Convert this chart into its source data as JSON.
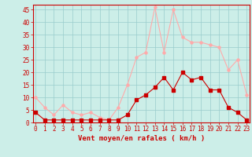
{
  "hours": [
    0,
    1,
    2,
    3,
    4,
    5,
    6,
    7,
    8,
    9,
    10,
    11,
    12,
    13,
    14,
    15,
    16,
    17,
    18,
    19,
    20,
    21,
    22,
    23
  ],
  "vent_moyen": [
    4,
    1,
    1,
    1,
    1,
    1,
    1,
    1,
    1,
    1,
    3,
    9,
    11,
    14,
    18,
    13,
    20,
    17,
    18,
    13,
    13,
    6,
    4,
    1
  ],
  "en_rafales": [
    10,
    6,
    3,
    7,
    4,
    3,
    4,
    2,
    1,
    6,
    15,
    26,
    28,
    46,
    28,
    45,
    34,
    32,
    32,
    31,
    30,
    21,
    25,
    11
  ],
  "color_moyen": "#cc0000",
  "color_rafales": "#ffaaaa",
  "background_color": "#cceee8",
  "grid_color": "#99cccc",
  "xlabel": "Vent moyen/en rafales ( km/h )",
  "ylim": [
    0,
    47
  ],
  "yticks": [
    0,
    5,
    10,
    15,
    20,
    25,
    30,
    35,
    40,
    45
  ],
  "xticks": [
    0,
    1,
    2,
    3,
    4,
    5,
    6,
    7,
    8,
    9,
    10,
    11,
    12,
    13,
    14,
    15,
    16,
    17,
    18,
    19,
    20,
    21,
    22,
    23
  ],
  "tick_fontsize": 5.5,
  "xlabel_fontsize": 6.5,
  "marker_size": 2.2,
  "line_width": 0.8
}
